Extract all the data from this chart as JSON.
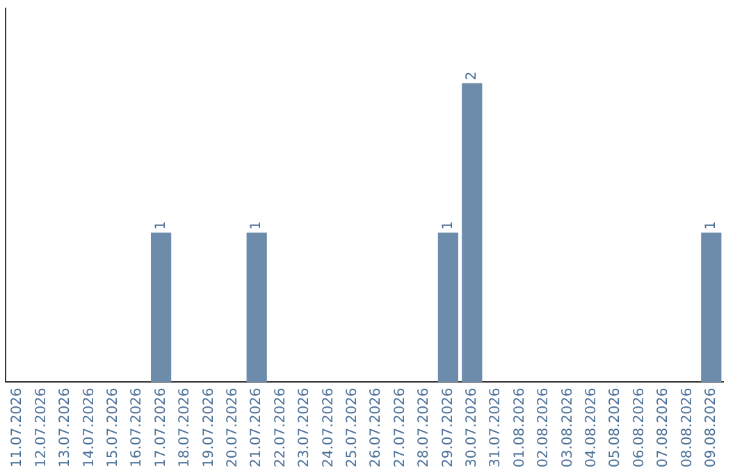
{
  "chart_data": {
    "type": "bar",
    "categories": [
      "11.07.2026",
      "12.07.2026",
      "13.07.2026",
      "14.07.2026",
      "15.07.2026",
      "16.07.2026",
      "17.07.2026",
      "18.07.2026",
      "19.07.2026",
      "20.07.2026",
      "21.07.2026",
      "22.07.2026",
      "23.07.2026",
      "24.07.2026",
      "25.07.2026",
      "26.07.2026",
      "27.07.2026",
      "28.07.2026",
      "29.07.2026",
      "30.07.2026",
      "31.07.2026",
      "01.08.2026",
      "02.08.2026",
      "03.08.2026",
      "04.08.2026",
      "05.08.2026",
      "06.08.2026",
      "07.08.2026",
      "08.08.2026",
      "09.08.2026"
    ],
    "values": [
      0,
      0,
      0,
      0,
      0,
      0,
      1,
      0,
      0,
      0,
      1,
      0,
      0,
      0,
      0,
      0,
      0,
      0,
      1,
      2,
      0,
      0,
      0,
      0,
      0,
      0,
      0,
      0,
      0,
      1
    ],
    "value_labels": [
      null,
      null,
      null,
      null,
      null,
      null,
      "1",
      null,
      null,
      null,
      "1",
      null,
      null,
      null,
      null,
      null,
      null,
      null,
      "1",
      "2",
      null,
      null,
      null,
      null,
      null,
      null,
      null,
      null,
      null,
      "1"
    ],
    "color": "#6d8cab",
    "tick_labels": "x",
    "grid": false,
    "legend": false
  }
}
